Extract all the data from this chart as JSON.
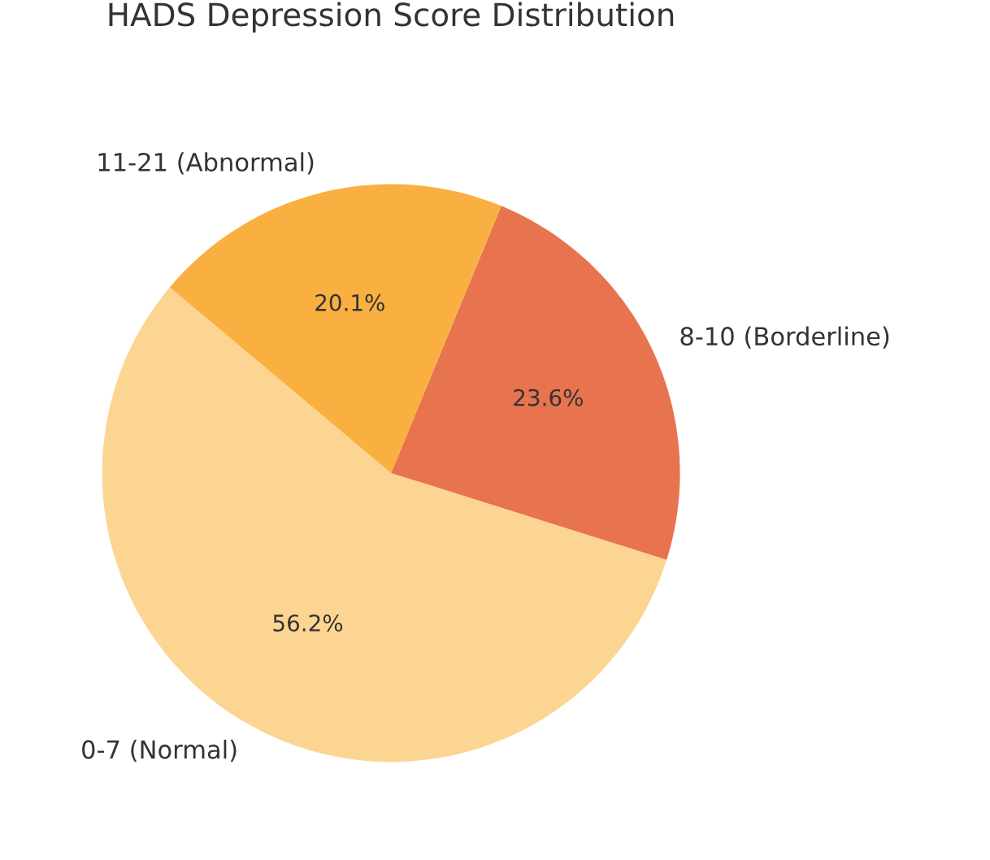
{
  "chart_data": {
    "type": "pie",
    "title": "HADS Depression Score Distribution",
    "categories": [
      "0-7 (Normal)",
      "8-10 (Borderline)",
      "11-21 (Abnormal)"
    ],
    "values": [
      56.2,
      23.6,
      20.1
    ],
    "colors": [
      "#fdd592",
      "#e8734f",
      "#f9b040"
    ],
    "value_labels": [
      "56.2%",
      "23.6%",
      "20.1%"
    ]
  }
}
